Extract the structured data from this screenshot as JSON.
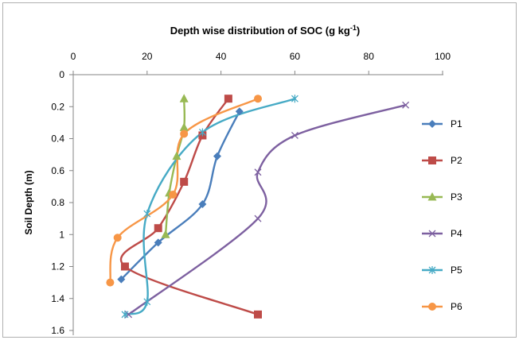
{
  "chart_data": {
    "type": "line",
    "title_main": "Depth wise distribution of SOC (g kg",
    "title_sup": "-1",
    "title_close": ")",
    "ylabel": "Soil Depth (m)",
    "xlabel": "",
    "xlim": [
      0,
      100
    ],
    "ylim": [
      0,
      1.6
    ],
    "y_inverted": true,
    "x_axis_position": "top",
    "x_ticks": [
      0,
      20,
      40,
      60,
      80,
      100
    ],
    "y_ticks": [
      0,
      0.2,
      0.4,
      0.6,
      0.8,
      1,
      1.2,
      1.4,
      1.6
    ],
    "x_tick_labels": [
      "0",
      "20",
      "40",
      "60",
      "80",
      "100"
    ],
    "y_tick_labels": [
      "0",
      "0.2",
      "0.4",
      "0.6",
      "0.8",
      "1",
      "1.2",
      "1.4",
      "1.6"
    ],
    "grid": false,
    "smoothed": true,
    "legend_position": "right",
    "series": [
      {
        "name": "P1",
        "color": "#4a7ebb",
        "marker": "diamond",
        "points": [
          [
            45,
            0.23
          ],
          [
            39,
            0.51
          ],
          [
            35,
            0.81
          ],
          [
            23,
            1.05
          ],
          [
            13,
            1.28
          ]
        ]
      },
      {
        "name": "P2",
        "color": "#be4b48",
        "marker": "square",
        "points": [
          [
            42,
            0.15
          ],
          [
            35,
            0.38
          ],
          [
            30,
            0.67
          ],
          [
            23,
            0.96
          ],
          [
            14,
            1.2
          ],
          [
            50,
            1.5
          ]
        ]
      },
      {
        "name": "P3",
        "color": "#98b954",
        "marker": "triangle",
        "points": [
          [
            30,
            0.15
          ],
          [
            30,
            0.33
          ],
          [
            28,
            0.51
          ],
          [
            26,
            0.74
          ],
          [
            25,
            1.0
          ]
        ]
      },
      {
        "name": "P4",
        "color": "#7d60a0",
        "marker": "x",
        "points": [
          [
            90,
            0.19
          ],
          [
            60,
            0.38
          ],
          [
            50,
            0.61
          ],
          [
            50,
            0.9
          ],
          [
            15,
            1.5
          ]
        ]
      },
      {
        "name": "P5",
        "color": "#46aac5",
        "marker": "star",
        "points": [
          [
            60,
            0.15
          ],
          [
            35,
            0.36
          ],
          [
            20,
            0.87
          ],
          [
            20,
            1.42
          ],
          [
            14,
            1.5
          ]
        ]
      },
      {
        "name": "P6",
        "color": "#f79646",
        "marker": "circle",
        "points": [
          [
            50,
            0.15
          ],
          [
            30,
            0.37
          ],
          [
            27,
            0.75
          ],
          [
            12,
            1.02
          ],
          [
            10,
            1.3
          ]
        ]
      }
    ]
  }
}
